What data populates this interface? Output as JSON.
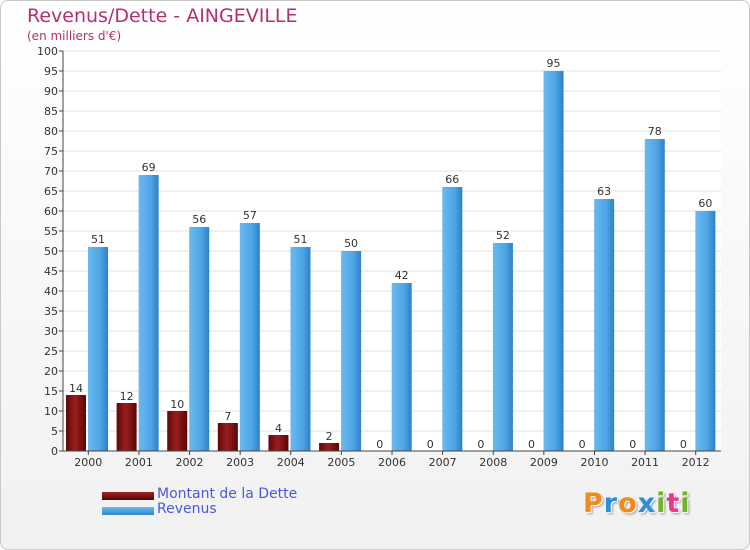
{
  "colors": {
    "debt": "#7a0e0e",
    "revenue": "#4ea6e6",
    "title": "#b3306e",
    "legend_text": "#4a5ad6",
    "axis": "#444444",
    "grid": "#e2e2e2"
  },
  "chart_data": {
    "type": "bar",
    "title": "Revenus/Dette - AINGEVILLE",
    "subtitle": "(en milliers d'€)",
    "categories": [
      "2000",
      "2001",
      "2002",
      "2003",
      "2004",
      "2005",
      "2006",
      "2007",
      "2008",
      "2009",
      "2010",
      "2011",
      "2012"
    ],
    "series": [
      {
        "name": "Montant de la Dette",
        "color": "#7a0e0e",
        "values": [
          14,
          12,
          10,
          7,
          4,
          2,
          0,
          0,
          0,
          0,
          0,
          0,
          0
        ]
      },
      {
        "name": "Revenus",
        "color": "#4ea6e6",
        "values": [
          51,
          69,
          56,
          57,
          51,
          50,
          42,
          66,
          52,
          95,
          63,
          78,
          60
        ]
      }
    ],
    "ylim": [
      0,
      100
    ],
    "ytick_step": 5,
    "grid": true,
    "legend": "bottom-left"
  },
  "legend": {
    "debt_label": "Montant de la Dette",
    "revenue_label": "Revenus"
  },
  "logo": {
    "letters": [
      "P",
      "r",
      "o",
      "x",
      "i",
      "t",
      "i"
    ],
    "colors": [
      "#f08a1c",
      "#2e8fd8",
      "#f08a1c",
      "#2e8fd8",
      "#6fb52c",
      "#e83a8a",
      "#6fb52c"
    ]
  }
}
